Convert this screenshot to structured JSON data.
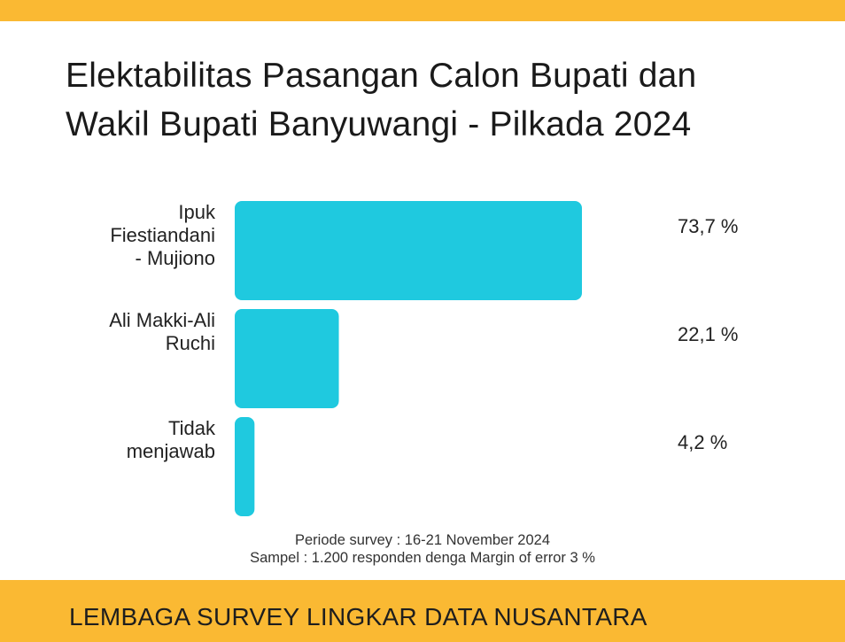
{
  "theme": {
    "accent": "#FAB933",
    "bar": "#1FC9DF"
  },
  "chart_data": {
    "type": "bar",
    "orientation": "horizontal",
    "title_lines": [
      "Elektabilitas Pasangan Calon Bupati dan",
      "Wakil Bupati Banyuwangi - Pilkada 2024"
    ],
    "categories": [
      [
        "Ipuk",
        "Fiestiandani",
        "- Mujiono"
      ],
      [
        "Ali Makki-Ali",
        "Ruchi"
      ],
      [
        "Tidak",
        "menjawab"
      ]
    ],
    "values": [
      73.7,
      22.1,
      4.2
    ],
    "value_labels": [
      "73,7 %",
      "22,1 %",
      "4,2 %"
    ],
    "xlim": [
      0,
      100
    ]
  },
  "notes": {
    "period": "Periode survey : 16-21 November 2024",
    "sample": "Sampel : 1.200 responden denga Margin of error 3 %"
  },
  "footer": {
    "org": "LEMBAGA SURVEY LINGKAR DATA NUSANTARA"
  }
}
